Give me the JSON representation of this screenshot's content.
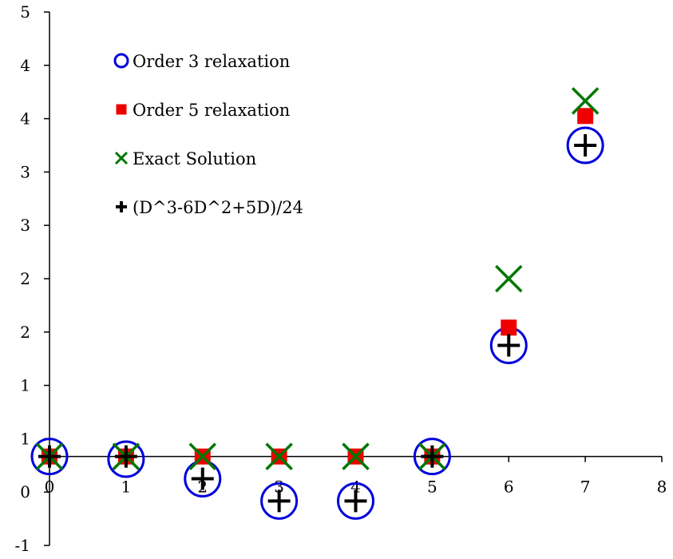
{
  "chart_data": {
    "type": "scatter",
    "title": "",
    "xlabel": "",
    "ylabel": "",
    "xlim": [
      0,
      8
    ],
    "ylim": [
      -1,
      5
    ],
    "x_ticks": [
      "0",
      "1",
      "2",
      "3",
      "4",
      "5",
      "6",
      "7",
      "8"
    ],
    "y_tick_labels": [
      "-1",
      "0",
      "1",
      "1",
      "2",
      "2",
      "3",
      "3",
      "4",
      "4",
      "5"
    ],
    "grid": false,
    "legend_position": "top-left",
    "series": [
      {
        "name": "Order 3 relaxation",
        "marker": "circle-open",
        "color": "#0000dd",
        "points": [
          [
            0,
            0
          ],
          [
            1,
            -0.03
          ],
          [
            2,
            -0.25
          ],
          [
            3,
            -0.5
          ],
          [
            4,
            -0.5
          ],
          [
            5,
            0
          ],
          [
            6,
            1.25
          ],
          [
            7,
            3.5
          ]
        ]
      },
      {
        "name": "Order 5 relaxation",
        "marker": "square",
        "color": "#ee0000",
        "points": [
          [
            0,
            0
          ],
          [
            1,
            0
          ],
          [
            2,
            0
          ],
          [
            3,
            0
          ],
          [
            4,
            0
          ],
          [
            5,
            0
          ],
          [
            6,
            1.45
          ],
          [
            7,
            3.83
          ]
        ]
      },
      {
        "name": "Exact Solution",
        "marker": "x",
        "color": "#007700",
        "points": [
          [
            0,
            0
          ],
          [
            1,
            0
          ],
          [
            2,
            0
          ],
          [
            3,
            0
          ],
          [
            4,
            0
          ],
          [
            5,
            0
          ],
          [
            6,
            2.0
          ],
          [
            7,
            4.0
          ]
        ]
      },
      {
        "name": "(D^3-6D^2+5D)/24",
        "marker": "plus",
        "color": "#000000",
        "points": [
          [
            0,
            0
          ],
          [
            1,
            0
          ],
          [
            2,
            -0.25
          ],
          [
            3,
            -0.5
          ],
          [
            4,
            -0.5
          ],
          [
            5,
            0
          ],
          [
            6,
            1.25
          ],
          [
            7,
            3.5
          ]
        ]
      }
    ]
  }
}
